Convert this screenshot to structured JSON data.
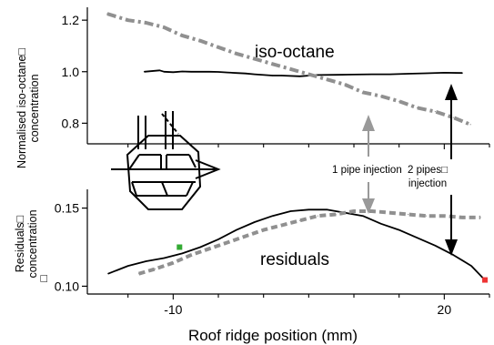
{
  "chart_data": [
    {
      "panel": "top",
      "type": "line",
      "ylabel_lines": [
        "Normalised  iso-octane□",
        "concentration"
      ],
      "ylim": [
        0.72,
        1.25
      ],
      "yticks": [
        "0.8",
        "1.0",
        "1.2"
      ],
      "ytick_values": [
        0.8,
        1.0,
        1.2
      ],
      "series": [
        {
          "style": "solid",
          "color": "#000000",
          "x": [
            -13.2,
            -11.5,
            -11.0,
            -10.0,
            -9.0,
            -8.0,
            -7.0,
            -6.0,
            -5.0,
            -4.0,
            -3.0,
            -2.0,
            -1.0,
            1.0,
            2.0,
            4.0,
            6.0,
            8.0,
            10.0,
            12.0,
            14.0,
            16.0,
            18.0,
            20.0,
            22.0
          ],
          "y": [
            1.0,
            1.005,
            1.0,
            0.998,
            1.001,
            1.0,
            1.0,
            1.0,
            0.999,
            0.997,
            0.995,
            0.993,
            0.99,
            0.985,
            0.985,
            0.982,
            0.987,
            0.988,
            0.989,
            0.99,
            0.99,
            0.992,
            0.994,
            0.996,
            0.995
          ]
        },
        {
          "style": "dash-dot",
          "color": "#909090",
          "x": [
            -17.3,
            -15.0,
            -13.0,
            -11.0,
            -9.0,
            -7.0,
            -5.0,
            -3.0,
            -1.0,
            1.0,
            3.0,
            5.0,
            7.0,
            9.0,
            11.0,
            13.0,
            15.0,
            17.0,
            19.0,
            21.0,
            22.9
          ],
          "y": [
            1.225,
            1.2,
            1.19,
            1.172,
            1.14,
            1.12,
            1.095,
            1.07,
            1.05,
            1.03,
            1.01,
            0.99,
            0.97,
            0.95,
            0.92,
            0.905,
            0.885,
            0.86,
            0.845,
            0.822,
            0.795
          ]
        }
      ],
      "annotations": {
        "series_label": "iso-octane"
      }
    },
    {
      "panel": "bottom",
      "type": "line",
      "ylabel_lines": [
        "Residuals□",
        "concentration",
        "□"
      ],
      "ylim": [
        0.095,
        0.162
      ],
      "yticks": [
        "0.10",
        "0.15"
      ],
      "ytick_values": [
        0.1,
        0.15
      ],
      "xlabel": "Roof ridge position (mm)",
      "xticks": [
        "-10",
        "20"
      ],
      "xtick_values": [
        -10,
        20
      ],
      "xlim": [
        -19.5,
        25.0
      ],
      "series": [
        {
          "style": "solid",
          "color": "#000000",
          "x": [
            -17.2,
            -15.0,
            -13.0,
            -11.0,
            -9.0,
            -7.0,
            -5.0,
            -3.0,
            -1.0,
            1.0,
            3.0,
            5.0,
            7.0,
            9.0,
            11.0,
            13.0,
            15.0,
            17.0,
            19.0,
            21.0,
            23.0,
            24.5
          ],
          "y": [
            0.108,
            0.113,
            0.116,
            0.118,
            0.121,
            0.125,
            0.13,
            0.136,
            0.141,
            0.145,
            0.148,
            0.149,
            0.149,
            0.147,
            0.145,
            0.14,
            0.136,
            0.131,
            0.126,
            0.12,
            0.113,
            0.104
          ]
        },
        {
          "style": "dash",
          "color": "#909090",
          "x": [
            -13.8,
            -12.0,
            -10.0,
            -8.0,
            -6.0,
            -4.0,
            -2.0,
            0.0,
            2.0,
            4.0,
            6.0,
            8.0,
            10.0,
            12.0,
            14.0,
            16.0,
            18.0,
            20.0,
            22.0,
            24.0
          ],
          "y": [
            0.108,
            0.111,
            0.115,
            0.12,
            0.124,
            0.128,
            0.132,
            0.136,
            0.139,
            0.142,
            0.145,
            0.146,
            0.148,
            0.148,
            0.147,
            0.146,
            0.145,
            0.145,
            0.144,
            0.144
          ]
        }
      ],
      "annotations": {
        "series_label": "residuals",
        "one_pipe": "1 pipe injection",
        "two_pipes_line1": "2 pipes□",
        "two_pipes_line2": "injection"
      },
      "markers": [
        {
          "x": -9.3,
          "y": 0.125,
          "color": "#33aa33"
        },
        {
          "x": 24.5,
          "y": 0.104,
          "color": "#ee3333"
        }
      ]
    }
  ]
}
